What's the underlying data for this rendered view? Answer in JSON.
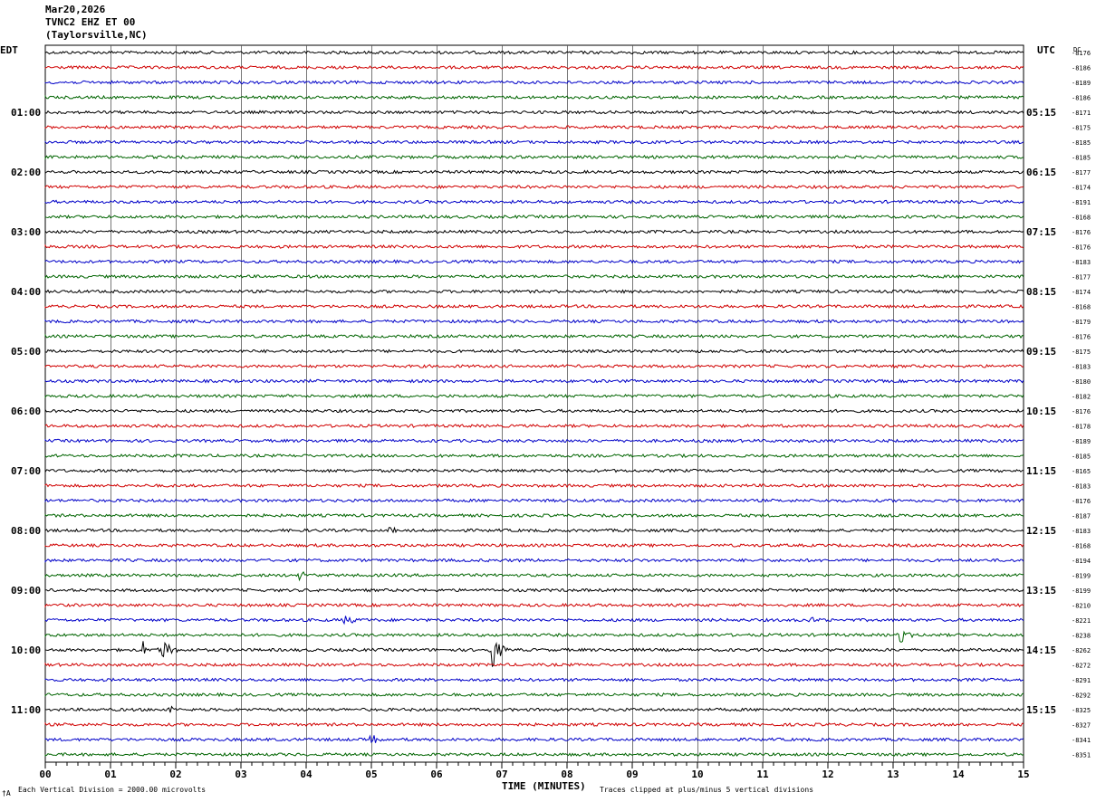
{
  "header": {
    "date": "Mar20,2026",
    "station": "TVNC2 EHZ ET 00",
    "location": "(Taylorsville,NC)"
  },
  "left_timezone": "EDT",
  "right_timezone": "UTC",
  "dc_label": "DC",
  "footer": {
    "scale_note": "Each Vertical Division = 2000.00 microvolts",
    "clip_note": "Traces clipped at plus/minus 5 vertical divisions",
    "corner_mark": "†A"
  },
  "colors": {
    "black": "#000000",
    "red": "#d00000",
    "blue": "#0000c8",
    "green": "#006400",
    "grid": "#000000"
  },
  "chart_data": {
    "type": "line",
    "xlabel": "TIME (MINUTES)",
    "x_ticks": [
      "00",
      "01",
      "02",
      "03",
      "04",
      "05",
      "06",
      "07",
      "08",
      "09",
      "10",
      "11",
      "12",
      "13",
      "14",
      "15"
    ],
    "xlim": [
      0,
      15
    ],
    "trace_color_cycle": [
      "black",
      "red",
      "blue",
      "green"
    ],
    "traces_per_hour": 4,
    "left_hour_labels": [
      "01:00",
      "02:00",
      "03:00",
      "04:00",
      "05:00",
      "06:00",
      "07:00",
      "08:00",
      "09:00",
      "10:00",
      "11:00"
    ],
    "right_hour_labels": [
      "05:15",
      "06:15",
      "07:15",
      "08:15",
      "09:15",
      "10:15",
      "11:15",
      "12:15",
      "13:15",
      "14:15",
      "15:15"
    ],
    "dc_offsets": [
      "-8176",
      "-8186",
      "-8189",
      "-8186",
      "-8171",
      "-8175",
      "-8185",
      "-8185",
      "-8177",
      "-8174",
      "-8191",
      "-8168",
      "-8176",
      "-8176",
      "-8183",
      "-8177",
      "-8174",
      "-8168",
      "-8179",
      "-8176",
      "-8175",
      "-8183",
      "-8180",
      "-8182",
      "-8176",
      "-8178",
      "-8189",
      "-8185",
      "-8165",
      "-8183",
      "-8176",
      "-8187",
      "-8183",
      "-8168",
      "-8194",
      "-8199",
      "-8199",
      "-8210",
      "-8221",
      "-8238",
      "-8262",
      "-8272",
      "-8291",
      "-8292",
      "-8325",
      "-8327",
      "-8341",
      "-8351"
    ],
    "events": [
      {
        "trace": 32,
        "minute": 5.3,
        "amplitude": 0.3
      },
      {
        "trace": 35,
        "minute": 3.9,
        "amplitude": 0.35
      },
      {
        "trace": 38,
        "minute": 4.6,
        "amplitude": 0.45
      },
      {
        "trace": 38,
        "minute": 11.7,
        "amplitude": 0.3
      },
      {
        "trace": 39,
        "minute": 13.1,
        "amplitude": 0.55
      },
      {
        "trace": 40,
        "minute": 1.5,
        "amplitude": 0.6
      },
      {
        "trace": 40,
        "minute": 1.8,
        "amplitude": 0.9
      },
      {
        "trace": 40,
        "minute": 6.85,
        "amplitude": 1.3
      },
      {
        "trace": 44,
        "minute": 1.9,
        "amplitude": 0.3
      },
      {
        "trace": 46,
        "minute": 5.0,
        "amplitude": 0.35
      }
    ]
  }
}
